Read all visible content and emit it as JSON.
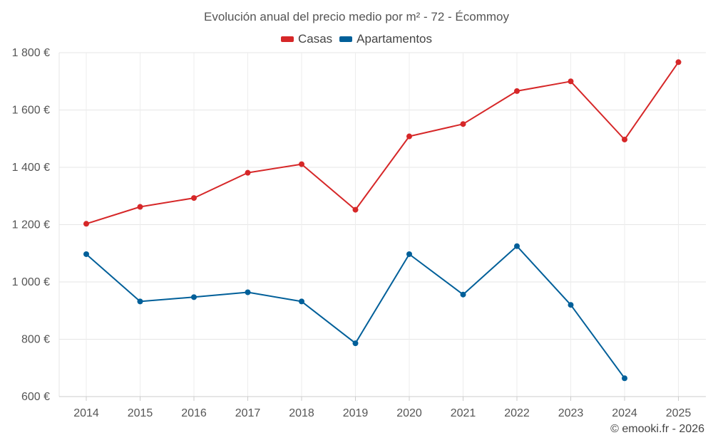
{
  "chart_data": {
    "type": "line",
    "title": "Evolución anual del precio medio por m² - 72 - Écommoy",
    "categories": [
      "2014",
      "2015",
      "2016",
      "2017",
      "2018",
      "2019",
      "2020",
      "2021",
      "2022",
      "2023",
      "2024",
      "2025"
    ],
    "series": [
      {
        "name": "Casas",
        "color": "#d62728",
        "values": [
          1203,
          1262,
          1293,
          1381,
          1411,
          1252,
          1508,
          1551,
          1666,
          1700,
          1497,
          1767
        ]
      },
      {
        "name": "Apartamentos",
        "color": "#005f99",
        "values": [
          1097,
          932,
          947,
          964,
          932,
          786,
          1097,
          956,
          1125,
          920,
          664,
          null
        ]
      }
    ],
    "ylim": [
      600,
      1800
    ],
    "yticks": [
      600,
      800,
      1000,
      1200,
      1400,
      1600,
      1800
    ],
    "ytick_labels": [
      "600 €",
      "800 €",
      "1 000 €",
      "1 200 €",
      "1 400 €",
      "1 600 €",
      "1 800 €"
    ],
    "xlabel": "",
    "ylabel": "",
    "grid": true,
    "legend_position": "top-center"
  },
  "credit": "© emooki.fr - 2026"
}
